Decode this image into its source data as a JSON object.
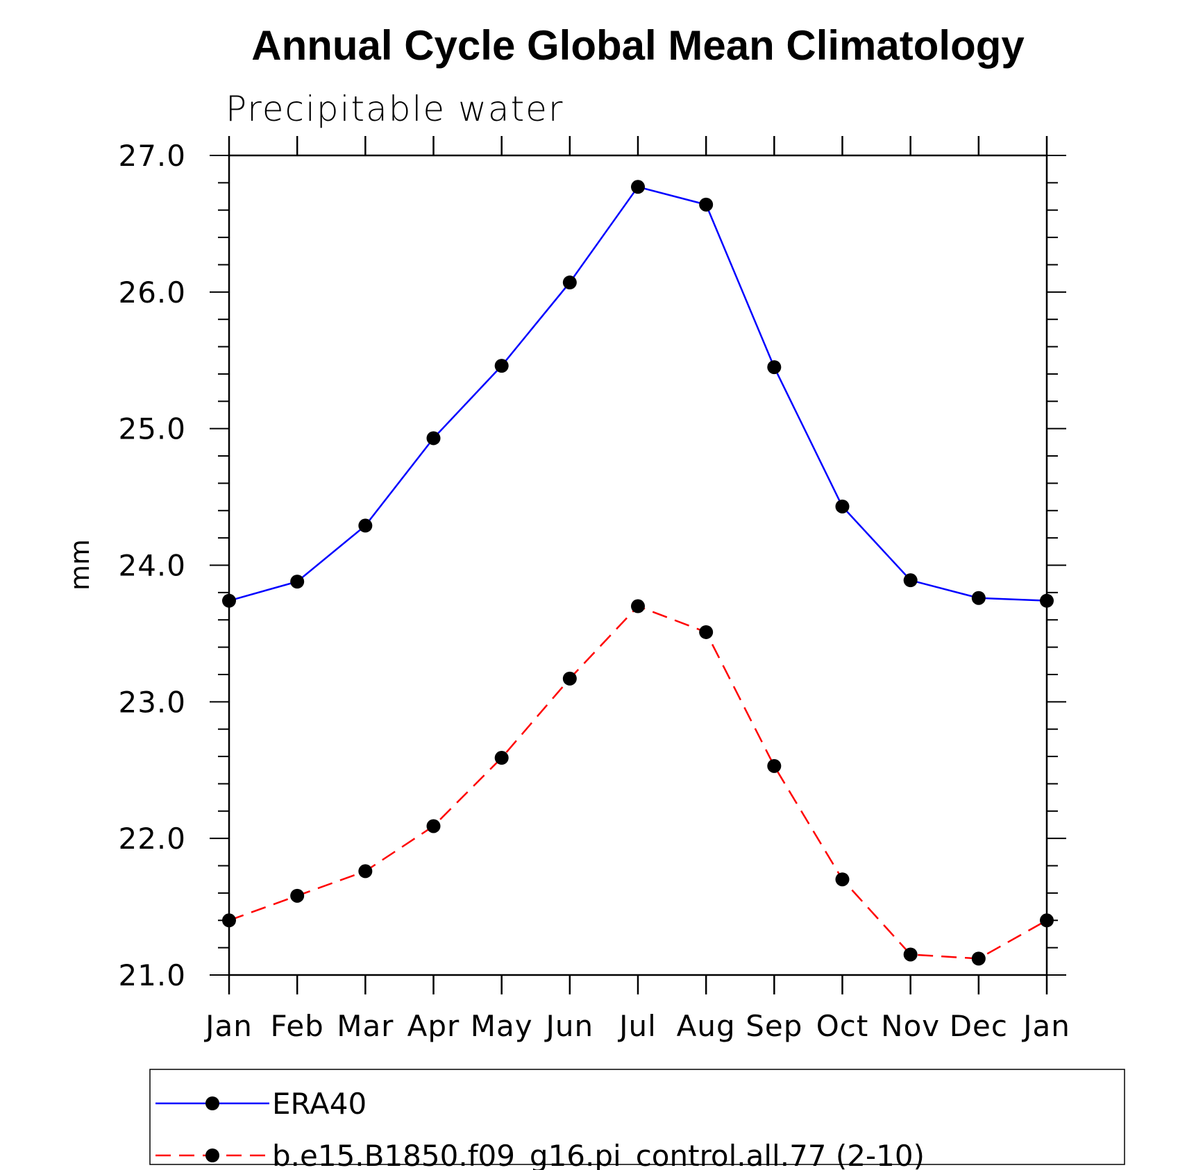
{
  "chart_data": {
    "type": "line",
    "title": "Annual Cycle Global Mean Climatology",
    "subtitle": "Precipitable water",
    "xlabel": "",
    "ylabel": "mm",
    "categories": [
      "Jan",
      "Feb",
      "Mar",
      "Apr",
      "May",
      "Jun",
      "Jul",
      "Aug",
      "Sep",
      "Oct",
      "Nov",
      "Dec",
      "Jan"
    ],
    "ylim": [
      21.0,
      27.0
    ],
    "yticks": [
      "21.0",
      "22.0",
      "23.0",
      "24.0",
      "25.0",
      "26.0",
      "27.0"
    ],
    "ytick_values": [
      21,
      22,
      23,
      24,
      25,
      26,
      27
    ],
    "grid": false,
    "legend_position": "bottom",
    "series": [
      {
        "name": "ERA40",
        "color": "#0000ff",
        "dash": "solid",
        "marker": "filled-circle",
        "values": [
          23.74,
          23.88,
          24.29,
          24.93,
          25.46,
          26.07,
          26.77,
          26.64,
          25.45,
          24.43,
          23.89,
          23.76,
          23.74
        ]
      },
      {
        "name": "b.e15.B1850.f09_g16.pi_control.all.77 (2-10)",
        "color": "#ff0000",
        "dash": "dashed",
        "marker": "filled-circle",
        "values": [
          21.4,
          21.58,
          21.76,
          22.09,
          22.59,
          23.17,
          23.7,
          23.51,
          22.53,
          21.7,
          21.15,
          21.12,
          21.4
        ]
      }
    ]
  }
}
